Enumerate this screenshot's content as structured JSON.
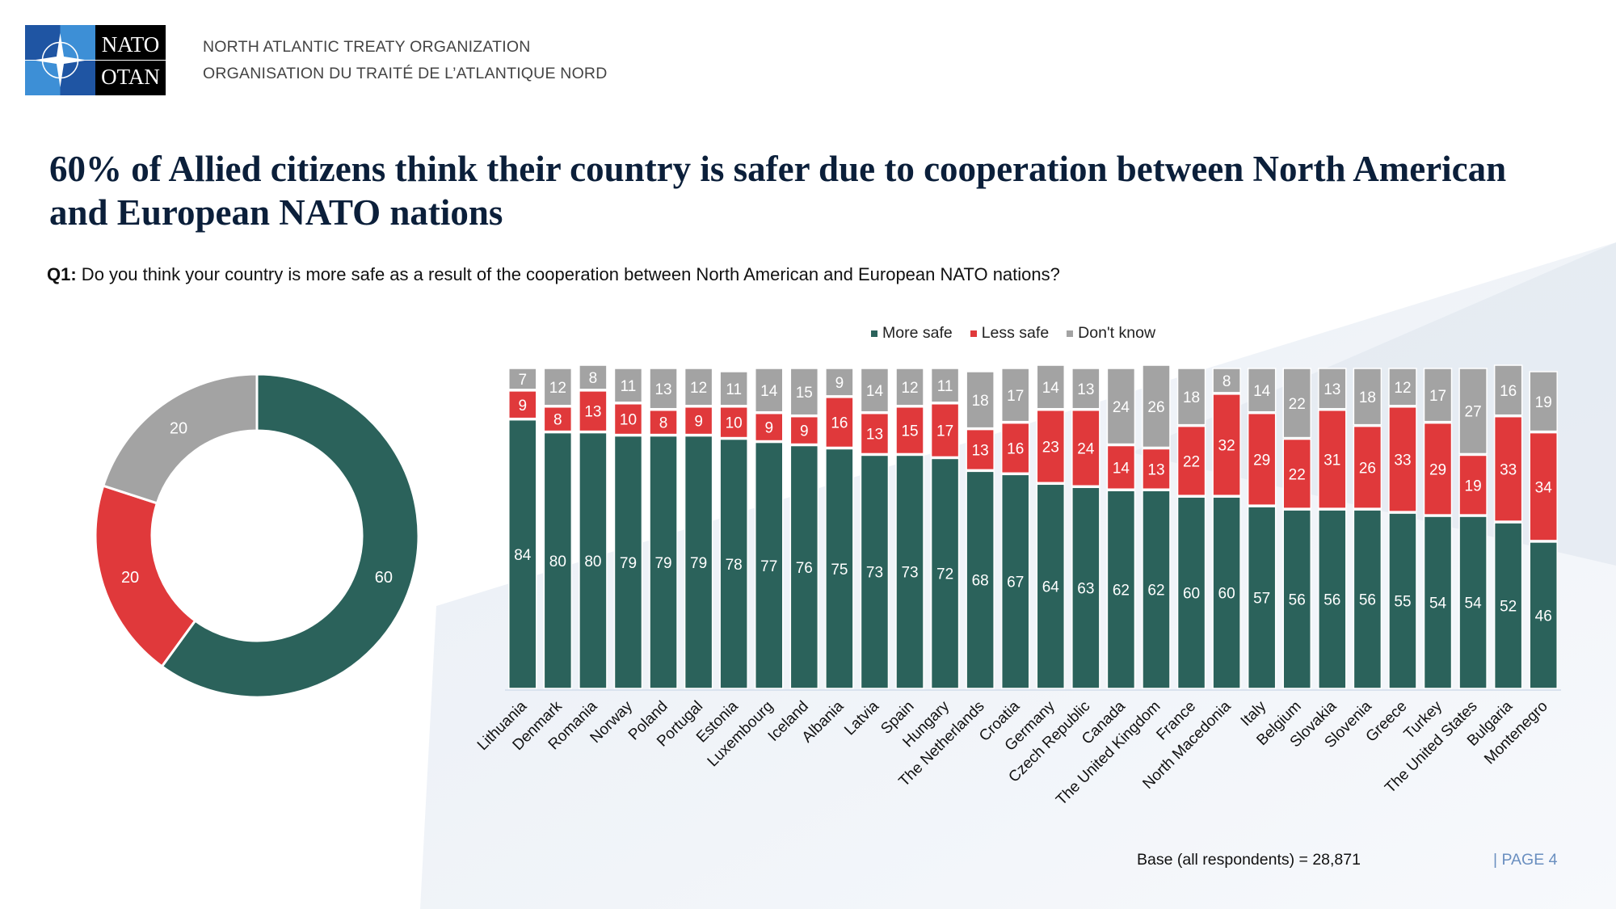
{
  "header": {
    "logo_text_top": "NATO",
    "logo_text_bottom": "OTAN",
    "org_en": "NORTH ATLANTIC TREATY ORGANIZATION",
    "org_fr": "ORGANISATION DU TRAITÉ DE L’ATLANTIQUE NORD"
  },
  "title": "60% of Allied citizens think their country is safer due to cooperation between North American and European NATO nations",
  "question": {
    "prefix": "Q1:",
    "text": " Do you think your country is more safe as a result of the cooperation between North American and European NATO nations?"
  },
  "colors": {
    "more_safe": "#2b625b",
    "less_safe": "#e0393b",
    "dont_know": "#a3a3a3"
  },
  "chart_data": [
    {
      "type": "pie",
      "variant": "donut",
      "labels": [
        "More safe",
        "Less safe",
        "Don't know"
      ],
      "values": [
        60,
        20,
        20
      ]
    },
    {
      "type": "bar",
      "stacked": true,
      "ylim": [
        0,
        100
      ],
      "legend": "top",
      "categories": [
        "Lithuania",
        "Denmark",
        "Romania",
        "Norway",
        "Poland",
        "Portugal",
        "Estonia",
        "Luxembourg",
        "Iceland",
        "Albania",
        "Latvia",
        "Spain",
        "Hungary",
        "The Netherlands",
        "Croatia",
        "Germany",
        "Czech Republic",
        "Canada",
        "The United Kingdom",
        "France",
        "North Macedonia",
        "Italy",
        "Belgium",
        "Slovakia",
        "Slovenia",
        "Greece",
        "Turkey",
        "The United States",
        "Bulgaria",
        "Montenegro"
      ],
      "series": [
        {
          "name": "More safe",
          "values": [
            84,
            80,
            80,
            79,
            79,
            79,
            78,
            77,
            76,
            75,
            73,
            73,
            72,
            68,
            67,
            64,
            63,
            62,
            62,
            60,
            60,
            57,
            56,
            56,
            56,
            55,
            54,
            54,
            52,
            46
          ]
        },
        {
          "name": "Less safe",
          "values": [
            9,
            8,
            13,
            10,
            8,
            9,
            10,
            9,
            9,
            16,
            13,
            15,
            17,
            13,
            16,
            23,
            24,
            14,
            13,
            22,
            32,
            29,
            22,
            31,
            26,
            33,
            29,
            19,
            33,
            34
          ]
        },
        {
          "name": "Don't know",
          "values": [
            7,
            12,
            8,
            11,
            13,
            12,
            11,
            14,
            15,
            9,
            14,
            12,
            11,
            18,
            17,
            14,
            13,
            24,
            26,
            18,
            8,
            14,
            22,
            13,
            18,
            12,
            17,
            27,
            16,
            19
          ]
        }
      ]
    }
  ],
  "footer": {
    "base": "Base (all respondents) = 28,871",
    "page": "|  PAGE 4"
  }
}
